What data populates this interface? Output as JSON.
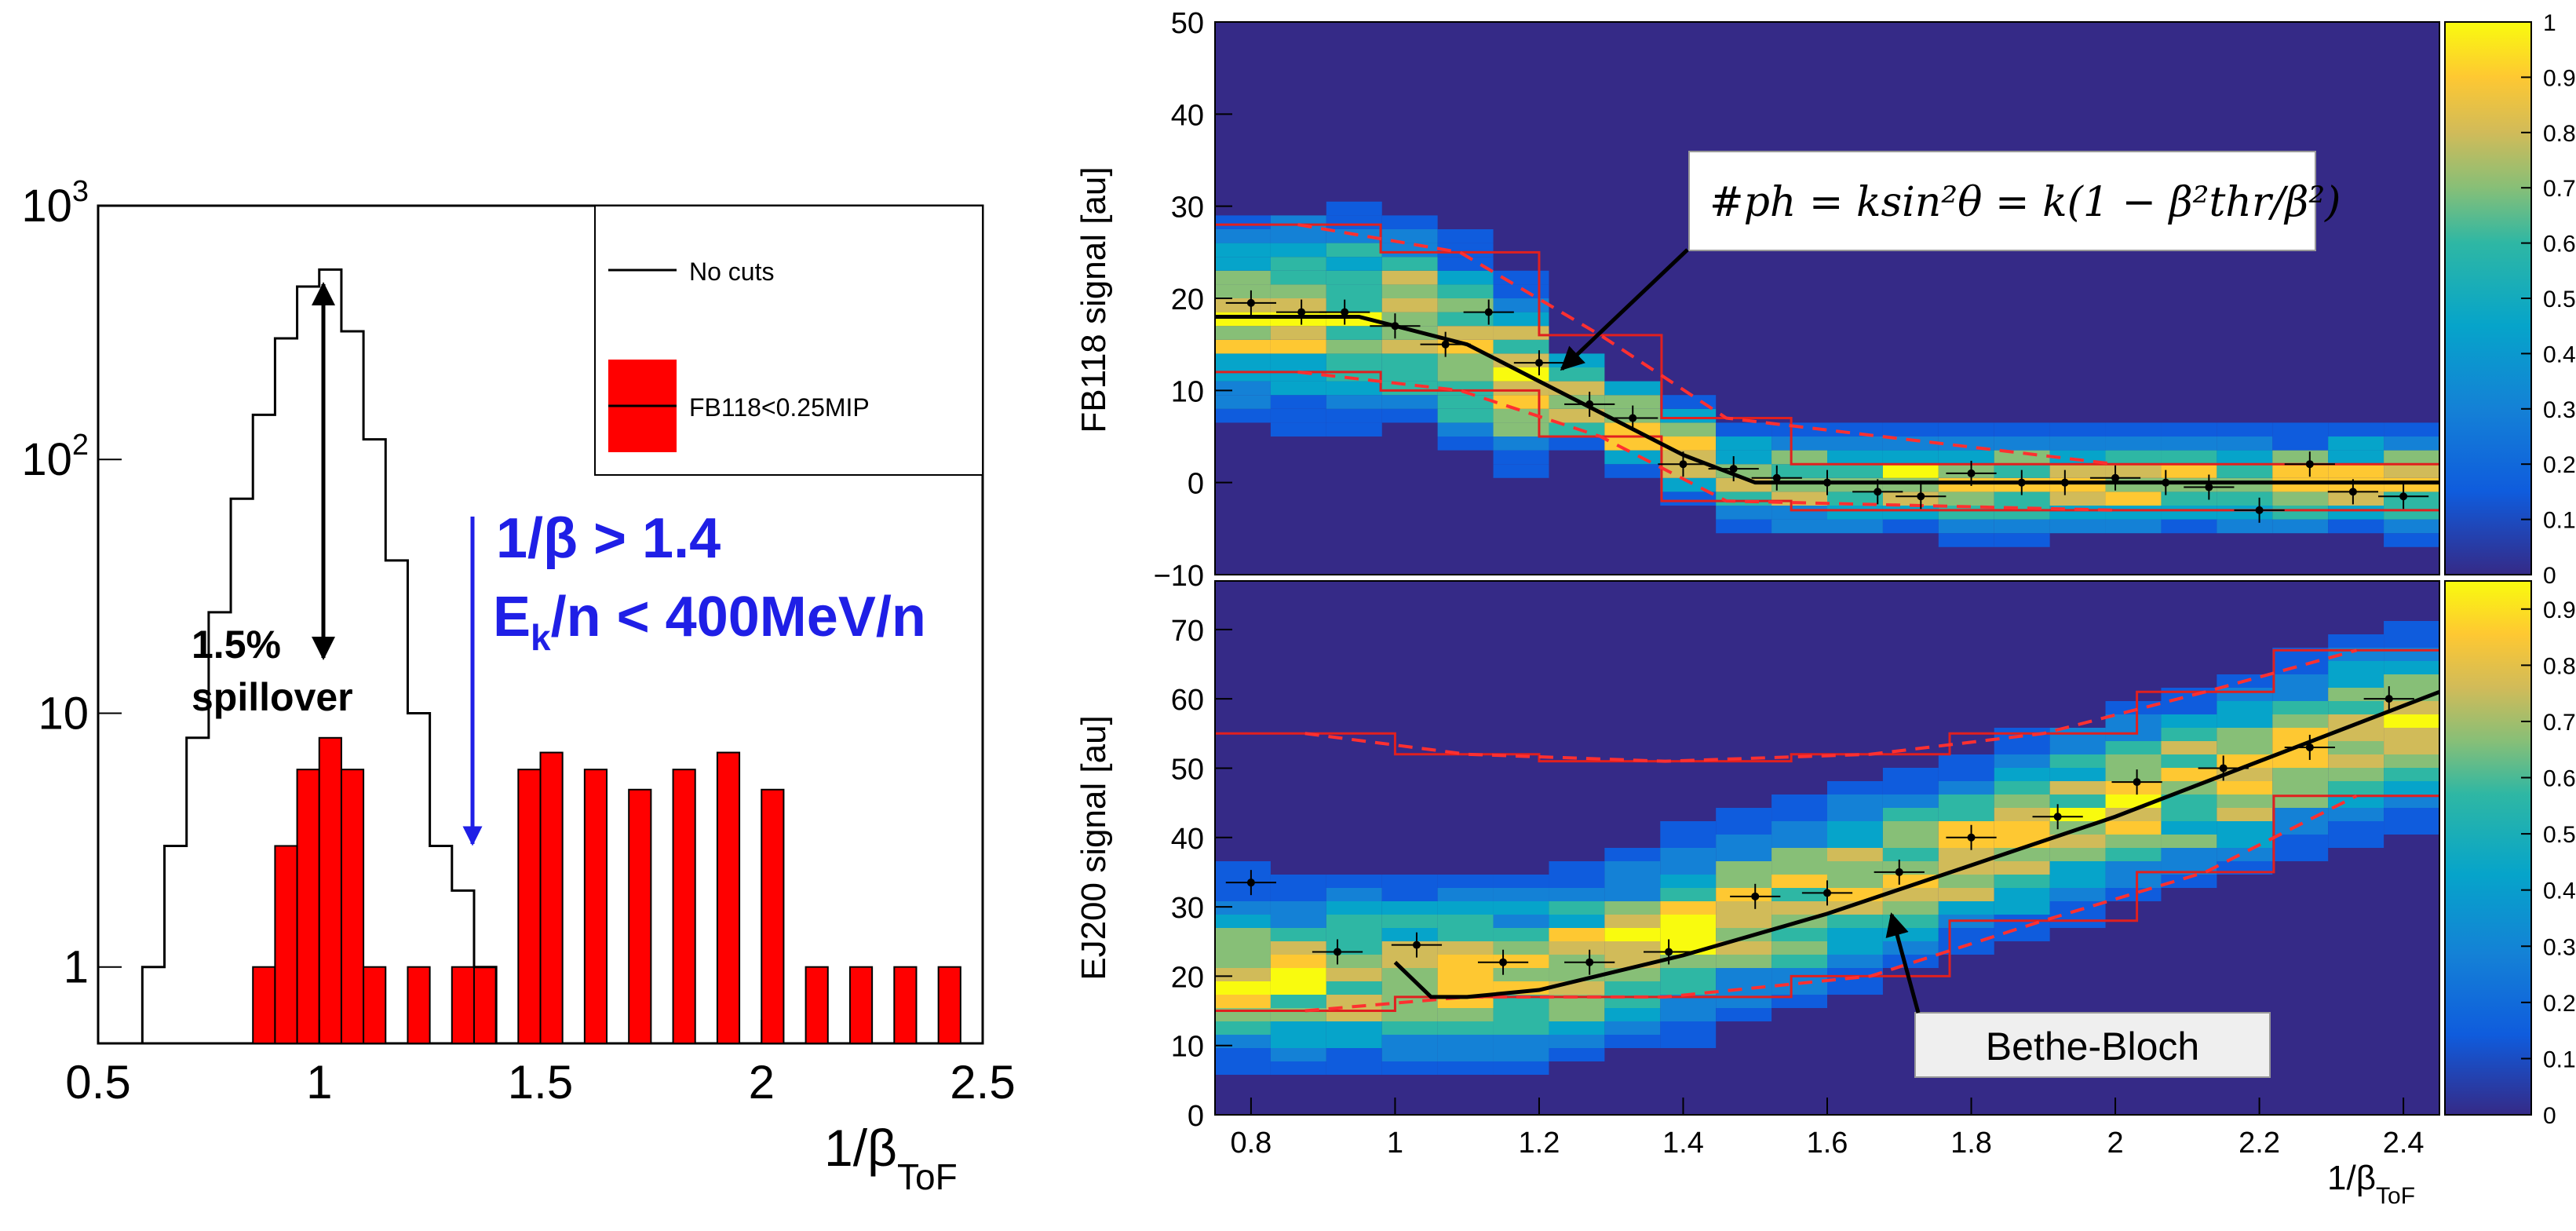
{
  "chart_data": [
    {
      "type": "histogram",
      "scale": "log",
      "xlabel_main": "1/β",
      "xlabel_sub": "ToF",
      "xlim": [
        0.5,
        2.5
      ],
      "ylim": [
        0.5,
        1000
      ],
      "x_tick_labels": [
        "0.5",
        "1",
        "1.5",
        "2",
        "2.5"
      ],
      "y_tick_labels": [
        {
          "base": "10",
          "exp": "3",
          "v": 1000
        },
        {
          "base": "10",
          "exp": "2",
          "v": 100
        },
        {
          "base": "10",
          "exp": "",
          "v": 10
        },
        {
          "base": "1",
          "exp": "",
          "v": 1
        }
      ],
      "legend": {
        "entries": [
          "No cuts",
          "FB118<0.25MIP"
        ],
        "placement": "top-right"
      },
      "colors": {
        "no_cuts": "#000000",
        "cut": "#ff0000"
      },
      "annotations": {
        "spillover_line1": "1.5%",
        "spillover_line2": "spillover",
        "cut_line1": "1/β > 1.4",
        "cut_line2_pre": "E",
        "cut_line2_sub": "k",
        "cut_line2_post": "/n < 400MeV/n",
        "cut_color": "#1f1fe6"
      },
      "series": [
        {
          "name": "No cuts",
          "x": [
            0.6,
            0.65,
            0.7,
            0.75,
            0.8,
            0.85,
            0.9,
            0.95,
            1.0,
            1.05,
            1.1,
            1.15,
            1.2,
            1.25,
            1.3,
            1.35
          ],
          "values": [
            1,
            3,
            8,
            25,
            70,
            150,
            300,
            480,
            560,
            320,
            120,
            40,
            10,
            3,
            2,
            1
          ]
        },
        {
          "name": "FB118<0.25MIP",
          "x": [
            0.85,
            0.9,
            0.95,
            1.0,
            1.05,
            1.1,
            1.2,
            1.3,
            1.35,
            1.45,
            1.5,
            1.6,
            1.7,
            1.8,
            1.9,
            2.0,
            2.1,
            2.2,
            2.3,
            2.4
          ],
          "values": [
            1,
            3,
            6,
            8,
            6,
            1,
            1,
            1,
            1,
            6,
            7,
            6,
            5,
            6,
            7,
            5,
            1,
            1,
            1,
            1
          ]
        }
      ]
    },
    {
      "type": "heatmap",
      "ylabel": "FB118 signal [au]",
      "xlim": [
        0.75,
        2.45
      ],
      "ylim": [
        -10,
        50
      ],
      "y_ticks": [
        -10,
        0,
        10,
        20,
        30,
        40,
        50
      ],
      "colorbar_ticks": [
        "0",
        "0.1",
        "0.2",
        "0.3",
        "0.4",
        "0.5",
        "0.6",
        "0.7",
        "0.8",
        "0.9",
        "1"
      ],
      "formula": "#ph = ksin²θ = k(1 − β²thr/β²)",
      "profile_x": [
        0.8,
        0.87,
        0.93,
        1.0,
        1.07,
        1.13,
        1.2,
        1.27,
        1.33,
        1.4,
        1.47,
        1.53,
        1.6,
        1.67,
        1.73,
        1.8,
        1.87,
        1.93,
        2.0,
        2.07,
        2.13,
        2.2,
        2.27,
        2.33,
        2.4
      ],
      "profile_y": [
        19.5,
        18.5,
        18.5,
        17,
        15,
        18.5,
        13,
        8.5,
        7,
        2,
        1.5,
        0.5,
        0,
        -1,
        -1.5,
        1,
        0,
        0,
        0.5,
        0,
        -0.5,
        -3,
        2,
        -1,
        -1.5
      ],
      "band_x": [
        0.75,
        0.98,
        0.98,
        1.2,
        1.2,
        1.37,
        1.37,
        1.55,
        1.55,
        2.45
      ],
      "band_upper": [
        28,
        28,
        25,
        25,
        16,
        16,
        7,
        7,
        2,
        2
      ],
      "band_lower": [
        12,
        12,
        10,
        10,
        5,
        5,
        -2,
        -2,
        -3,
        -3
      ],
      "theory_x": [
        0.75,
        0.95,
        1.0,
        1.1,
        1.2,
        1.3,
        1.4,
        1.5,
        2.45
      ],
      "theory_y": [
        18,
        18,
        17,
        15,
        11,
        7,
        3,
        0,
        0
      ]
    },
    {
      "type": "heatmap",
      "ylabel": "EJ200 signal [au]",
      "xlabel_main": "1/β",
      "xlabel_sub": "ToF",
      "xlim": [
        0.75,
        2.45
      ],
      "ylim": [
        0,
        77
      ],
      "x_ticks": [
        "0.8",
        "1",
        "1.2",
        "1.4",
        "1.6",
        "1.8",
        "2",
        "2.2",
        "2.4"
      ],
      "y_ticks": [
        0,
        10,
        20,
        30,
        40,
        50,
        60,
        70
      ],
      "colorbar_ticks": [
        "0",
        "0.1",
        "0.2",
        "0.3",
        "0.4",
        "0.5",
        "0.6",
        "0.7",
        "0.8",
        "0.9"
      ],
      "label_bethe": "Bethe-Bloch",
      "profile_x": [
        0.8,
        0.92,
        1.03,
        1.15,
        1.27,
        1.38,
        1.5,
        1.6,
        1.7,
        1.8,
        1.92,
        2.03,
        2.15,
        2.27,
        2.38
      ],
      "profile_y": [
        33.5,
        23.5,
        24.5,
        22,
        22,
        23.5,
        31.5,
        32,
        35,
        40,
        43,
        48,
        50,
        53,
        60
      ],
      "band_x": [
        0.75,
        1.0,
        1.0,
        1.2,
        1.2,
        1.55,
        1.55,
        1.77,
        1.77,
        2.03,
        2.03,
        2.22,
        2.22,
        2.45
      ],
      "band_upper": [
        55,
        55,
        52,
        52,
        51,
        51,
        52,
        52,
        55,
        55,
        61,
        61,
        67,
        67
      ],
      "band_lower": [
        15,
        15,
        17,
        17,
        17,
        17,
        20,
        20,
        28,
        28,
        35,
        35,
        46,
        46
      ],
      "theory_x": [
        1.0,
        1.05,
        1.1,
        1.2,
        1.4,
        1.6,
        1.8,
        2.0,
        2.2,
        2.45
      ],
      "theory_y": [
        22,
        17,
        17,
        18,
        23,
        29,
        36,
        43,
        51,
        61
      ]
    }
  ]
}
